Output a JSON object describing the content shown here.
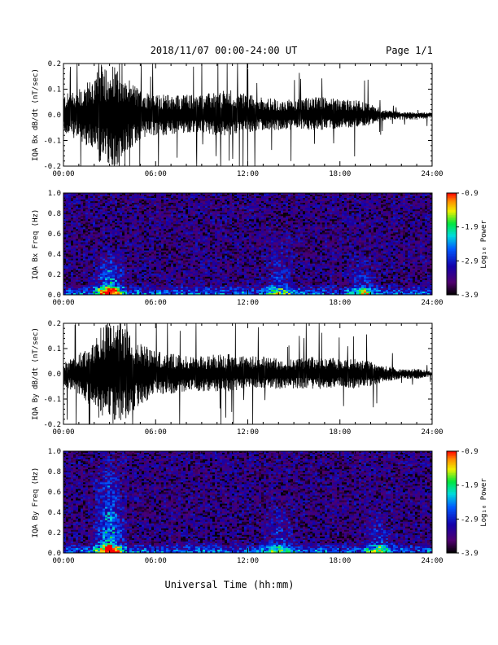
{
  "header": {
    "date_range": "2018/11/07  00:00-24:00 UT",
    "page": "Page 1/1"
  },
  "xlabel": "Universal Time (hh:mm)",
  "colorbar": {
    "label": "Log₁₀ Power",
    "ticks": [
      "-0.9",
      "-1.9",
      "-2.9",
      "-3.9"
    ],
    "range": [
      -3.9,
      -0.9
    ]
  },
  "chart_data": [
    {
      "type": "line",
      "ylabel": "IQA Bx dB/dt (nT/sec)",
      "xlim": [
        "00:00",
        "24:00"
      ],
      "x_ticks": [
        "00:00",
        "06:00",
        "12:00",
        "18:00",
        "24:00"
      ],
      "ylim": [
        -0.2,
        0.2
      ],
      "y_ticks": [
        "0.2",
        "0.1",
        "0.0",
        "-0.1",
        "-0.2"
      ],
      "series": [
        {
          "x_hours": [
            0,
            1,
            2,
            2.5,
            3,
            3.5,
            4,
            5,
            6,
            7,
            8,
            9,
            10,
            11,
            12,
            13,
            14,
            15,
            16,
            17,
            18,
            19,
            20,
            21,
            22,
            23,
            24
          ],
          "upper": [
            0.08,
            0.1,
            0.15,
            0.2,
            0.2,
            0.2,
            0.15,
            0.1,
            0.08,
            0.08,
            0.08,
            0.08,
            0.09,
            0.1,
            0.08,
            0.07,
            0.06,
            0.06,
            0.07,
            0.07,
            0.06,
            0.06,
            0.04,
            0.02,
            0.01,
            0.01,
            0.01
          ],
          "lower": [
            -0.07,
            -0.1,
            -0.15,
            -0.2,
            -0.2,
            -0.2,
            -0.15,
            -0.1,
            -0.08,
            -0.08,
            -0.07,
            -0.07,
            -0.08,
            -0.08,
            -0.07,
            -0.06,
            -0.06,
            -0.06,
            -0.06,
            -0.06,
            -0.05,
            -0.05,
            -0.04,
            -0.02,
            -0.02,
            -0.02,
            -0.01
          ]
        }
      ]
    },
    {
      "type": "heatmap",
      "ylabel": "IQA Bx Freq (Hz)",
      "xlim": [
        "00:00",
        "24:00"
      ],
      "x_ticks": [
        "00:00",
        "06:00",
        "12:00",
        "18:00",
        "24:00"
      ],
      "ylim": [
        0,
        1.0
      ],
      "y_ticks": [
        "1.0",
        "0.8",
        "0.6",
        "0.4",
        "0.2",
        "0.0"
      ],
      "colorbar_range": [
        -3.9,
        -0.9
      ],
      "features": [
        {
          "time_hours": 3.0,
          "freq_max": 0.45,
          "peak": -1.0
        },
        {
          "time_hours": 14.0,
          "freq_max": 0.6,
          "peak": -2.6
        },
        {
          "time_hours": 19.5,
          "freq_max": 0.5,
          "peak": -2.7
        }
      ]
    },
    {
      "type": "line",
      "ylabel": "IQA By dB/dt (nT/sec)",
      "xlim": [
        "00:00",
        "24:00"
      ],
      "x_ticks": [
        "00:00",
        "06:00",
        "12:00",
        "18:00",
        "24:00"
      ],
      "ylim": [
        -0.2,
        0.2
      ],
      "y_ticks": [
        "0.2",
        "0.1",
        "0.0",
        "-0.1",
        "-0.2"
      ],
      "series": [
        {
          "x_hours": [
            0,
            1,
            2,
            2.5,
            3,
            3.5,
            4,
            5,
            6,
            7,
            8,
            9,
            10,
            11,
            12,
            13,
            14,
            15,
            16,
            17,
            18,
            19,
            20,
            21,
            22,
            23,
            24
          ],
          "upper": [
            0.05,
            0.08,
            0.12,
            0.2,
            0.2,
            0.2,
            0.18,
            0.12,
            0.09,
            0.08,
            0.07,
            0.07,
            0.08,
            0.08,
            0.07,
            0.07,
            0.06,
            0.06,
            0.07,
            0.07,
            0.06,
            0.06,
            0.05,
            0.03,
            0.02,
            0.02,
            0.01
          ],
          "lower": [
            -0.05,
            -0.08,
            -0.15,
            -0.2,
            -0.2,
            -0.2,
            -0.18,
            -0.12,
            -0.09,
            -0.08,
            -0.07,
            -0.07,
            -0.07,
            -0.07,
            -0.06,
            -0.06,
            -0.06,
            -0.06,
            -0.06,
            -0.06,
            -0.05,
            -0.06,
            -0.05,
            -0.03,
            -0.02,
            -0.02,
            -0.01
          ]
        }
      ]
    },
    {
      "type": "heatmap",
      "ylabel": "IQA By Freq (Hz)",
      "xlim": [
        "00:00",
        "24:00"
      ],
      "x_ticks": [
        "00:00",
        "06:00",
        "12:00",
        "18:00",
        "24:00"
      ],
      "ylim": [
        0,
        1.0
      ],
      "y_ticks": [
        "1.0",
        "0.8",
        "0.6",
        "0.4",
        "0.2",
        "0.0"
      ],
      "colorbar_range": [
        -3.9,
        -0.9
      ],
      "features": [
        {
          "time_hours": 3.0,
          "freq_max": 1.0,
          "peak": -1.0
        },
        {
          "time_hours": 14.0,
          "freq_max": 0.55,
          "peak": -2.6
        },
        {
          "time_hours": 20.5,
          "freq_max": 0.5,
          "peak": -2.6
        }
      ]
    }
  ]
}
